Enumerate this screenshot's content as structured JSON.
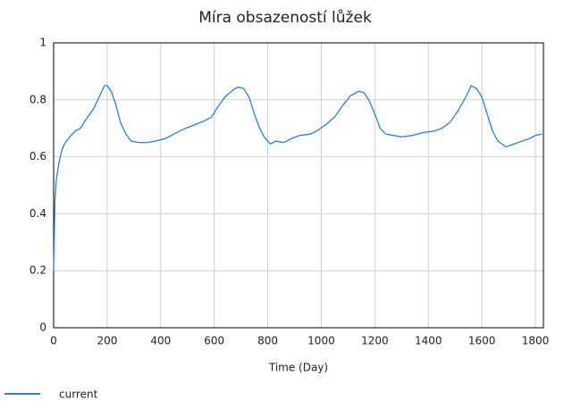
{
  "chart_data": {
    "type": "line",
    "title": "Míra obsazeností lůžek",
    "x_label": "Time (Day)",
    "x": [
      0,
      5,
      10,
      20,
      30,
      40,
      60,
      80,
      100,
      120,
      150,
      170,
      190,
      200,
      215,
      230,
      250,
      270,
      290,
      320,
      350,
      380,
      420,
      450,
      480,
      520,
      560,
      590,
      610,
      640,
      670,
      690,
      710,
      730,
      750,
      770,
      790,
      810,
      830,
      860,
      890,
      920,
      960,
      990,
      1020,
      1050,
      1080,
      1110,
      1140,
      1160,
      1180,
      1200,
      1220,
      1240,
      1270,
      1300,
      1340,
      1380,
      1420,
      1450,
      1480,
      1510,
      1540,
      1560,
      1580,
      1600,
      1620,
      1640,
      1660,
      1690,
      1720,
      1750,
      1780,
      1800,
      1825
    ],
    "series": [
      {
        "name": "current",
        "color": "#2f7ed8",
        "values": [
          0.2,
          0.45,
          0.52,
          0.58,
          0.62,
          0.645,
          0.67,
          0.69,
          0.7,
          0.73,
          0.77,
          0.81,
          0.85,
          0.85,
          0.83,
          0.79,
          0.72,
          0.68,
          0.655,
          0.65,
          0.65,
          0.655,
          0.665,
          0.68,
          0.695,
          0.71,
          0.725,
          0.74,
          0.77,
          0.81,
          0.835,
          0.845,
          0.84,
          0.81,
          0.75,
          0.7,
          0.665,
          0.645,
          0.655,
          0.65,
          0.665,
          0.675,
          0.68,
          0.695,
          0.715,
          0.74,
          0.78,
          0.815,
          0.83,
          0.825,
          0.795,
          0.75,
          0.7,
          0.68,
          0.675,
          0.67,
          0.675,
          0.685,
          0.69,
          0.7,
          0.72,
          0.76,
          0.81,
          0.85,
          0.84,
          0.81,
          0.75,
          0.69,
          0.655,
          0.635,
          0.645,
          0.655,
          0.665,
          0.675,
          0.68
        ]
      }
    ],
    "xlim": [
      0,
      1830
    ],
    "xticks": [
      0,
      200,
      400,
      600,
      800,
      1000,
      1200,
      1400,
      1600,
      1800
    ],
    "ylim": [
      0,
      1
    ],
    "yticks": [
      0,
      0.2,
      0.4,
      0.6,
      0.8,
      1
    ],
    "grid": true
  }
}
